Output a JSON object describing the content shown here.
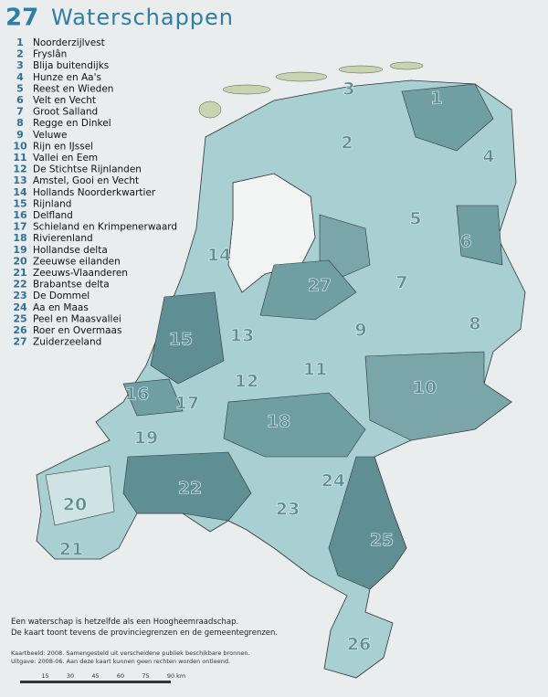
{
  "header": {
    "number": 27,
    "title": "Waterschappen"
  },
  "legend": [
    {
      "number": 1,
      "name": "Noorderzijlvest"
    },
    {
      "number": 2,
      "name": "Fryslân"
    },
    {
      "number": 3,
      "name": "Blija buitendijks"
    },
    {
      "number": 4,
      "name": "Hunze en Aa's"
    },
    {
      "number": 5,
      "name": "Reest en Wieden"
    },
    {
      "number": 6,
      "name": "Velt en Vecht"
    },
    {
      "number": 7,
      "name": "Groot Salland"
    },
    {
      "number": 8,
      "name": "Regge en Dinkel"
    },
    {
      "number": 9,
      "name": "Veluwe"
    },
    {
      "number": 10,
      "name": "Rijn en IJssel"
    },
    {
      "number": 11,
      "name": "Vallei en Eem"
    },
    {
      "number": 12,
      "name": "De Stichtse Rijnlanden"
    },
    {
      "number": 13,
      "name": "Amstel, Gooi en Vecht"
    },
    {
      "number": 14,
      "name": "Hollands Noorderkwartier"
    },
    {
      "number": 15,
      "name": "Rijnland"
    },
    {
      "number": 16,
      "name": "Delfland"
    },
    {
      "number": 17,
      "name": "Schieland en Krimpenerwaard"
    },
    {
      "number": 18,
      "name": "Rivierenland"
    },
    {
      "number": 19,
      "name": "Hollandse delta"
    },
    {
      "number": 20,
      "name": "Zeeuwse eilanden"
    },
    {
      "number": 21,
      "name": "Zeeuws-Vlaanderen"
    },
    {
      "number": 22,
      "name": "Brabantse delta"
    },
    {
      "number": 23,
      "name": "De Dommel"
    },
    {
      "number": 24,
      "name": "Aa en Maas"
    },
    {
      "number": 25,
      "name": "Peel en Maasvallei"
    },
    {
      "number": 26,
      "name": "Roer en Overmaas"
    },
    {
      "number": 27,
      "name": "Zuiderzeeland"
    }
  ],
  "notes": [
    "Een waterschap is hetzelfde als een Hoogheemraadschap.",
    "De kaart toont tevens de provinciegrenzen en de gemeentegrenzen."
  ],
  "credits": [
    "Kaartbeeld: 2008. Samengesteld uit verscheidene publiek beschikbare bronnen.",
    "Uitgave: 2008-06. Aan deze kaart kunnen geen rechten worden ontleend."
  ],
  "scale_bar": {
    "ticks": [
      15,
      30,
      45,
      60,
      75,
      90
    ],
    "unit": "km"
  }
}
